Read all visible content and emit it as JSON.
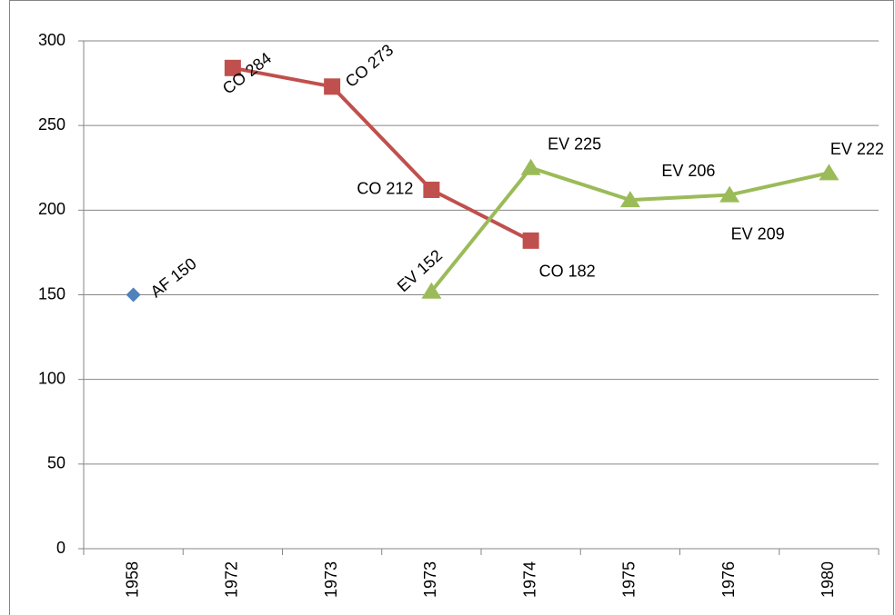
{
  "chart_data": {
    "type": "line",
    "categories": [
      "1958",
      "1972",
      "1973",
      "1973",
      "1974",
      "1975",
      "1976",
      "1980"
    ],
    "series": [
      {
        "name": "AF",
        "color": "#4f81bd",
        "marker": "diamond",
        "values": [
          150,
          null,
          null,
          null,
          null,
          null,
          null,
          null
        ],
        "value_labels": [
          "AF 150",
          null,
          null,
          null,
          null,
          null,
          null,
          null
        ]
      },
      {
        "name": "CO",
        "color": "#c0504d",
        "marker": "square",
        "values": [
          null,
          284,
          273,
          212,
          182,
          null,
          null,
          null
        ],
        "value_labels": [
          null,
          "CO 284",
          "CO 273",
          "CO 212",
          "CO 182",
          null,
          null,
          null
        ]
      },
      {
        "name": "EV",
        "color": "#9bbb59",
        "marker": "triangle",
        "values": [
          null,
          null,
          null,
          152,
          225,
          206,
          209,
          222
        ],
        "value_labels": [
          null,
          null,
          null,
          "EV 152",
          "EV 225",
          "EV 206",
          "EV 209",
          "EV 222"
        ]
      }
    ],
    "ylim": [
      0,
      300
    ],
    "yticks": [
      0,
      50,
      100,
      150,
      200,
      250,
      300
    ],
    "grid": true
  }
}
